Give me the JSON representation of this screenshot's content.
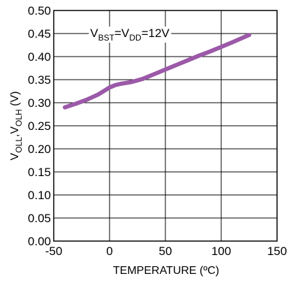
{
  "chart_data": {
    "type": "line",
    "xlabel": "TEMPERATURE (ºC)",
    "ylabel": {
      "v1": "V",
      "s1": "OLL",
      "comma": ",",
      "v2": "V",
      "s2": "OLH",
      "unit": " (V)"
    },
    "annotation": {
      "p1": "V",
      "s1": "BST",
      "p2": "=V",
      "s2": "DD",
      "p3": "=12V"
    },
    "xlim": [
      -50,
      150
    ],
    "ylim": [
      0.0,
      0.5
    ],
    "x_ticks": [
      "-50",
      "0",
      "50",
      "100",
      "150"
    ],
    "y_ticks": [
      "0.00",
      "0.05",
      "0.10",
      "0.15",
      "0.20",
      "0.25",
      "0.30",
      "0.35",
      "0.40",
      "0.45",
      "0.50"
    ],
    "grid": true,
    "series": [
      {
        "color": "#9b59a8",
        "x": [
          -40,
          -30,
          -20,
          -10,
          0,
          5,
          10,
          20,
          30,
          40,
          50,
          60,
          70,
          80,
          90,
          100,
          110,
          125
        ],
        "y": [
          0.29,
          0.298,
          0.307,
          0.318,
          0.333,
          0.338,
          0.341,
          0.345,
          0.352,
          0.362,
          0.372,
          0.382,
          0.392,
          0.402,
          0.411,
          0.421,
          0.431,
          0.447
        ]
      }
    ]
  }
}
